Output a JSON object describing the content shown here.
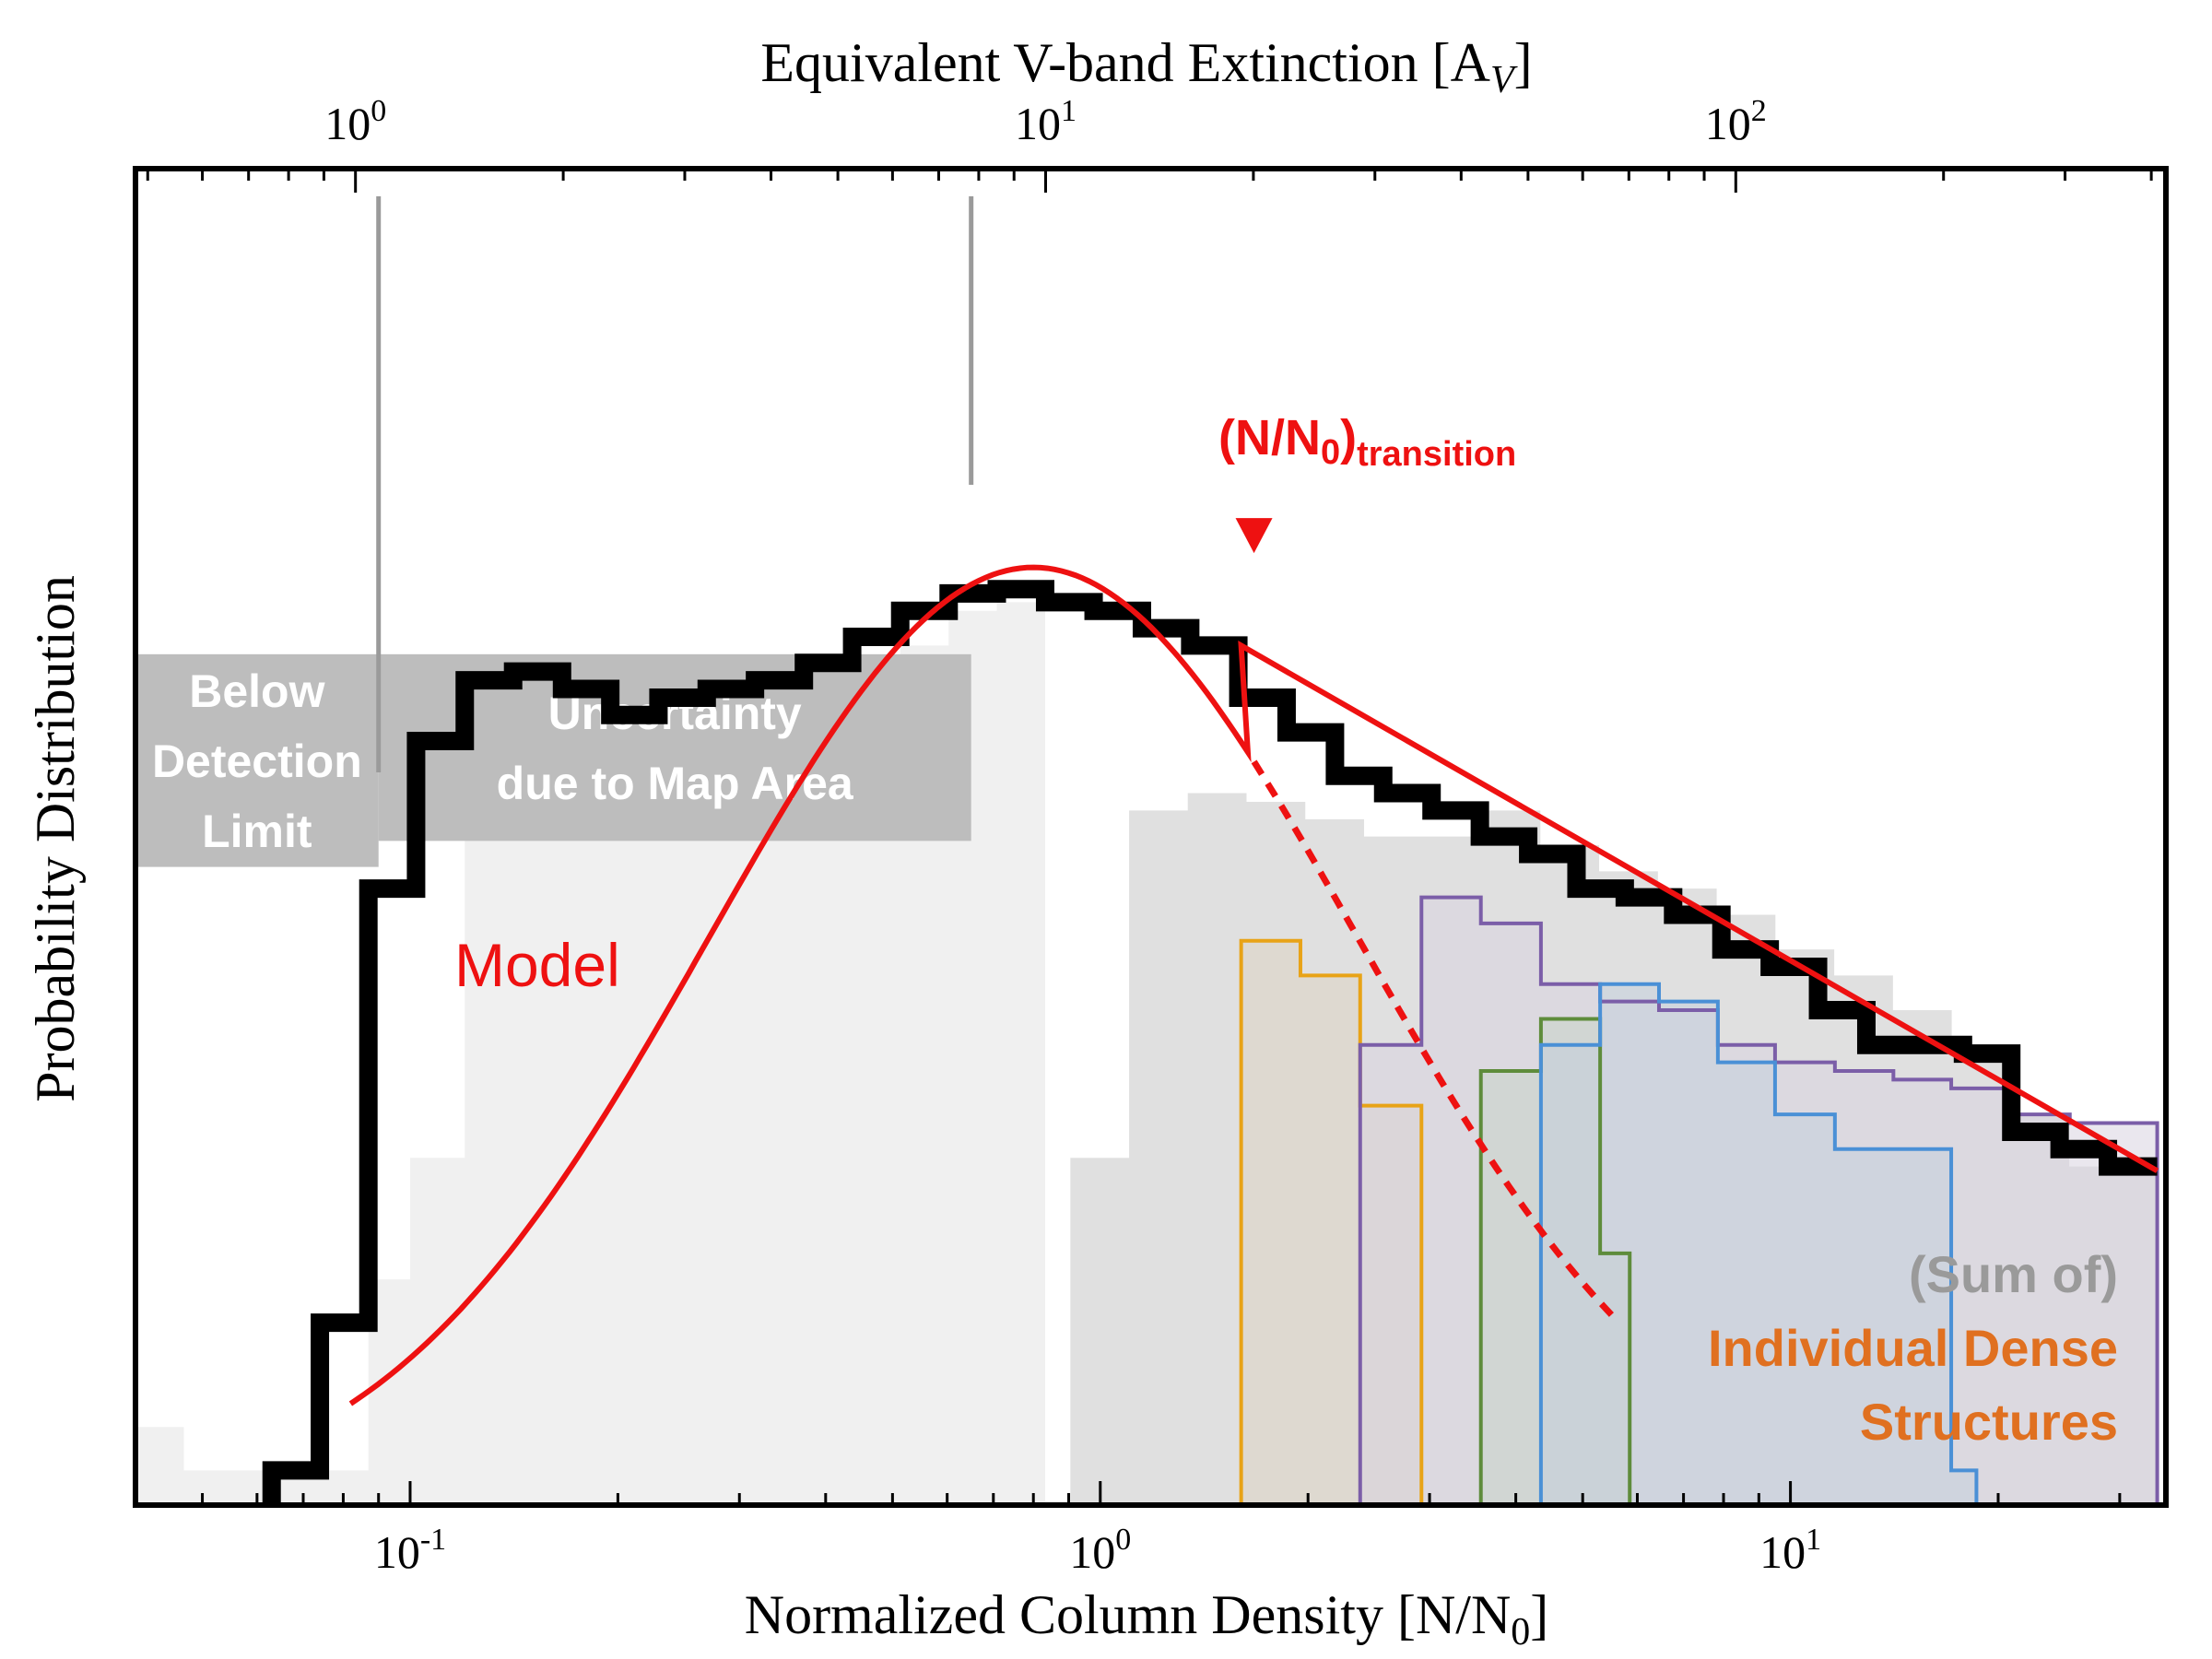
{
  "chart_data": {
    "type": "step-histogram",
    "xscale": "log",
    "xlim": [
      0.04,
      35
    ],
    "ylim": [
      0,
      1
    ],
    "xlabel": "Normalized Column Density [N/N",
    "xlabel_sub": "0",
    "xlabel_close": "]",
    "top_xlabel": "Equivalent V-band Extinction [A",
    "top_xlabel_sub": "V",
    "top_xlabel_close": "]",
    "ylabel": "Probability Distribution",
    "av_per_unit_density": 12,
    "bottom_ticks": [
      {
        "value": 0.1,
        "base": "10",
        "exp": "-1"
      },
      {
        "value": 1,
        "base": "10",
        "exp": "0"
      },
      {
        "value": 10,
        "base": "10",
        "exp": "1"
      }
    ],
    "top_ticks": [
      {
        "av": 1,
        "base": "10",
        "exp": "0"
      },
      {
        "av": 10,
        "base": "10",
        "exp": "1"
      },
      {
        "av": 100,
        "base": "10",
        "exp": "2"
      }
    ],
    "regions": [
      {
        "name": "below-detection",
        "label_lines": [
          "Below",
          "Detection",
          "Limit"
        ],
        "x": [
          0.04,
          0.09
        ],
        "y": [
          0.735,
          0.98
        ],
        "color": "#bdbdbd"
      },
      {
        "name": "uncertainty-map-area",
        "label_lines": [
          "Uncertainty",
          "due to Map Area"
        ],
        "x": [
          0.09,
          0.65
        ],
        "y": [
          0.765,
          0.98
        ],
        "color": "#bdbdbd"
      }
    ],
    "observed": {
      "name": "Observed PDF",
      "color": "#000000",
      "edges": [
        0.063,
        0.074,
        0.087,
        0.102,
        0.12,
        0.141,
        0.166,
        0.195,
        0.229,
        0.269,
        0.316,
        0.372,
        0.437,
        0.513,
        0.603,
        0.708,
        0.832,
        0.978,
        1.149,
        1.35,
        1.585,
        1.862,
        2.188,
        2.57,
        3.02,
        3.548,
        4.169,
        4.898,
        5.754,
        6.761,
        7.943,
        9.333,
        10.965,
        12.883,
        15.136,
        17.783,
        20.893,
        24.547,
        28.84,
        34.0
      ],
      "values": [
        0.04,
        0.21,
        0.71,
        0.88,
        0.95,
        0.96,
        0.94,
        0.91,
        0.93,
        0.94,
        0.95,
        0.97,
        1.0,
        1.03,
        1.05,
        1.055,
        1.04,
        1.03,
        1.01,
        0.99,
        0.93,
        0.89,
        0.84,
        0.82,
        0.8,
        0.77,
        0.75,
        0.71,
        0.7,
        0.68,
        0.64,
        0.62,
        0.57,
        0.53,
        0.53,
        0.52,
        0.43,
        0.41,
        0.39
      ]
    },
    "grey_early": {
      "name": "Uncertainty histogram",
      "color": "#f0f0f0",
      "edges": [
        0.04,
        0.047,
        0.087,
        0.1,
        0.12,
        0.141,
        0.166,
        0.195,
        0.229,
        0.269,
        0.316,
        0.372,
        0.437,
        0.513,
        0.603,
        0.708,
        0.832
      ],
      "values": [
        0.09,
        0.04,
        0.26,
        0.4,
        0.89,
        0.93,
        0.94,
        0.95,
        0.93,
        0.92,
        0.93,
        0.96,
        0.97,
        0.99,
        1.03,
        1.04
      ]
    },
    "grey_sum": {
      "name": "(Sum of) Individual Dense Structures",
      "color": "#e0e0e0",
      "edges": [
        0.905,
        1.101,
        1.339,
        1.629,
        1.982,
        2.411,
        2.934,
        3.569,
        4.342,
        5.282,
        6.427,
        7.819,
        9.512,
        11.573,
        14.08,
        17.13,
        20.84,
        25.35,
        34.0
      ],
      "values": [
        0.4,
        0.8,
        0.82,
        0.81,
        0.79,
        0.77,
        0.77,
        0.8,
        0.76,
        0.73,
        0.71,
        0.68,
        0.64,
        0.61,
        0.57,
        0.52,
        0.45,
        0.39
      ]
    },
    "structures": [
      {
        "name": "structure-orange",
        "color": "#e8a317",
        "fill": "#ddd3c3",
        "edges": [
          1.6,
          1.95,
          2.38,
          2.92
        ],
        "values": [
          0.65,
          0.61,
          0.46
        ]
      },
      {
        "name": "structure-purple",
        "color": "#7b5ea8",
        "fill": "#d8d3e0",
        "edges": [
          2.38,
          2.92,
          3.56,
          4.35,
          5.3,
          6.45,
          7.85,
          9.5,
          11.6,
          14.1,
          17.1,
          20.8,
          25.4,
          34.0
        ],
        "values": [
          0.53,
          0.7,
          0.67,
          0.6,
          0.58,
          0.57,
          0.53,
          0.51,
          0.5,
          0.49,
          0.48,
          0.45,
          0.44
        ]
      },
      {
        "name": "structure-green",
        "color": "#5e8c3b",
        "fill": "#c8d3c8",
        "edges": [
          3.56,
          4.35,
          5.3,
          5.85
        ],
        "values": [
          0.5,
          0.56,
          0.29
        ]
      },
      {
        "name": "structure-blue",
        "color": "#4a90d6",
        "fill": "#c4cfdc",
        "edges": [
          4.35,
          5.3,
          6.45,
          7.85,
          9.5,
          11.6,
          14.1,
          17.1,
          18.6
        ],
        "values": [
          0.53,
          0.6,
          0.58,
          0.51,
          0.45,
          0.41,
          0.41,
          0.04
        ]
      }
    ],
    "model": {
      "name": "Model",
      "color": "#ee1111",
      "lognormal_peak_x": 0.8,
      "lognormal_peak_y": 1.08,
      "lognormal_sigma_ln": 1.08,
      "power_law_points": [
        [
          1.6,
          0.99
        ],
        [
          34.0,
          0.385
        ]
      ],
      "dashed_lognormal_max_x": 5.6
    },
    "transition": {
      "label": "(N/N",
      "label_sub": "0",
      "label_close": ")",
      "label_suffix": "transition",
      "x": 1.67,
      "y_marker": 1.105
    },
    "annotations": {
      "model_label": "Model",
      "sum_of": "(Sum of)",
      "individual_line1": "Individual Dense",
      "individual_line2": "Structures",
      "sum_color": "#9a9a9a",
      "individual_color": "#e07020"
    }
  }
}
